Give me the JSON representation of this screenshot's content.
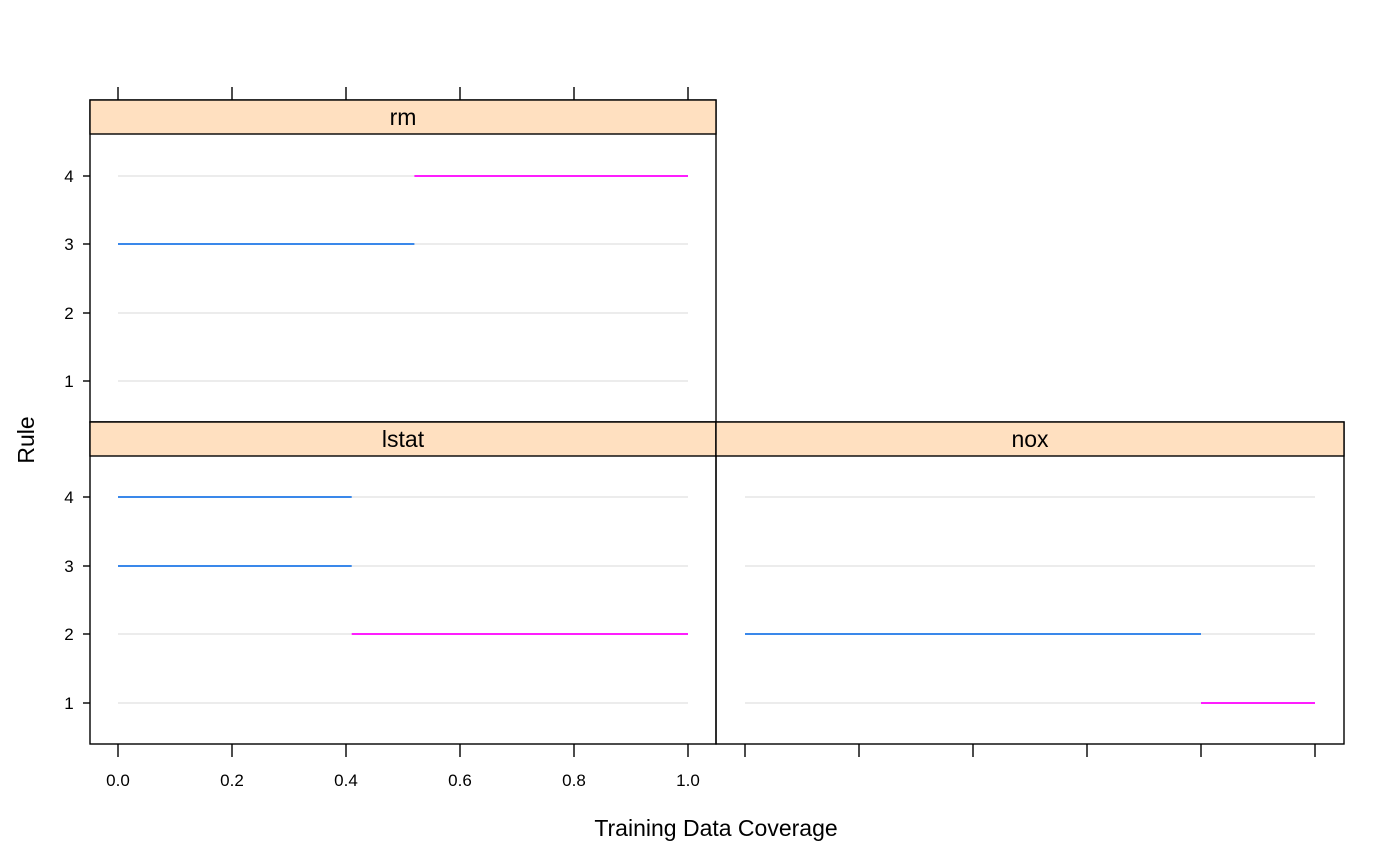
{
  "chart_data": {
    "type": "trellis-segments",
    "xlabel": "Training Data Coverage",
    "ylabel": "Rule",
    "xlim": [
      0.0,
      1.0
    ],
    "x_ticks": [
      "0.0",
      "0.2",
      "0.4",
      "0.6",
      "0.8",
      "1.0"
    ],
    "y_categories": [
      "1",
      "2",
      "3",
      "4"
    ],
    "colors": {
      "strip": "#ffe0c0",
      "reference": "#e6e6e6",
      "blue": "#1f78e8",
      "magenta": "#ff00ff"
    },
    "panels": [
      {
        "name": "rm",
        "segments": [
          {
            "rule": 4,
            "from": 0.52,
            "to": 1.0,
            "color": "magenta"
          },
          {
            "rule": 3,
            "from": 0.0,
            "to": 0.52,
            "color": "blue"
          }
        ]
      },
      {
        "name": "lstat",
        "segments": [
          {
            "rule": 4,
            "from": 0.0,
            "to": 0.41,
            "color": "blue"
          },
          {
            "rule": 3,
            "from": 0.0,
            "to": 0.41,
            "color": "blue"
          },
          {
            "rule": 2,
            "from": 0.41,
            "to": 1.0,
            "color": "magenta"
          }
        ]
      },
      {
        "name": "nox",
        "segments": [
          {
            "rule": 2,
            "from": 0.0,
            "to": 0.8,
            "color": "blue"
          },
          {
            "rule": 1,
            "from": 0.8,
            "to": 1.0,
            "color": "magenta"
          }
        ]
      }
    ]
  }
}
